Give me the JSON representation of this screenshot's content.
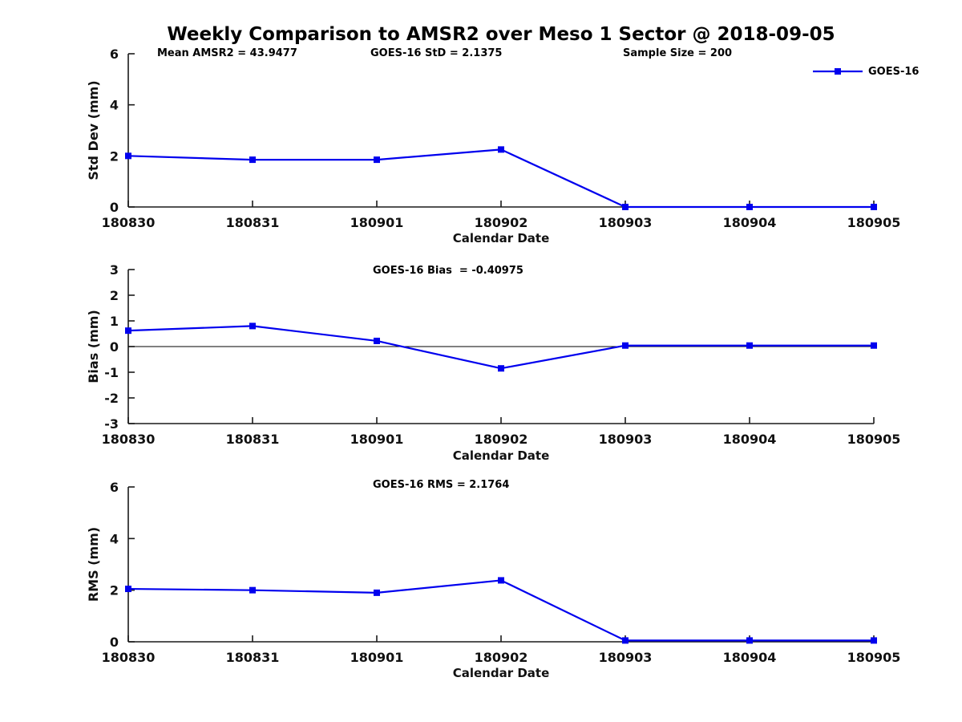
{
  "figure": {
    "title": "Weekly Comparison to AMSR2 over Meso 1 Sector @ 2018-09-05",
    "annotations": {
      "mean_amsr2": "Mean AMSR2 = 43.9477",
      "goes16_std": "GOES-16 StD = 2.1375",
      "sample_size": "Sample Size = 200",
      "goes16_bias": "GOES-16 Bias  = -0.40975",
      "goes16_rms": "GOES-16 RMS = 2.1764"
    },
    "legend": {
      "label": "GOES-16",
      "line_color": "#0000EE",
      "marker": "square"
    },
    "colors": {
      "series_blue": "#0000EE",
      "axis_black": "#1a1a1a",
      "text_black": "#111111"
    }
  },
  "chart_data": [
    {
      "type": "line",
      "title": "Std Dev subplot",
      "categories": [
        "180830",
        "180831",
        "180901",
        "180902",
        "180903",
        "180904",
        "180905"
      ],
      "series": [
        {
          "name": "GOES-16",
          "color": "#0000EE",
          "values": [
            2.0,
            1.85,
            1.85,
            2.25,
            0.0,
            0.0,
            0.0
          ]
        }
      ],
      "xlabel": "Calendar Date",
      "ylabel": "Std Dev (mm)",
      "ylim": [
        0,
        6
      ],
      "yticks": [
        0,
        2,
        4,
        6
      ],
      "zero_line": false,
      "grid": false,
      "legend_position": "top-right"
    },
    {
      "type": "line",
      "title": "Bias subplot",
      "categories": [
        "180830",
        "180831",
        "180901",
        "180902",
        "180903",
        "180904",
        "180905"
      ],
      "series": [
        {
          "name": "GOES-16",
          "color": "#0000EE",
          "values": [
            0.62,
            0.8,
            0.22,
            -0.85,
            0.04,
            0.04,
            0.04
          ]
        }
      ],
      "xlabel": "Calendar Date",
      "ylabel": "Bias (mm)",
      "ylim": [
        -3,
        3
      ],
      "yticks": [
        -3,
        -2,
        -1,
        0,
        1,
        2,
        3
      ],
      "zero_line": true,
      "grid": false,
      "legend_position": "none"
    },
    {
      "type": "line",
      "title": "RMS subplot",
      "categories": [
        "180830",
        "180831",
        "180901",
        "180902",
        "180903",
        "180904",
        "180905"
      ],
      "series": [
        {
          "name": "GOES-16",
          "color": "#0000EE",
          "values": [
            2.05,
            2.0,
            1.9,
            2.38,
            0.05,
            0.05,
            0.05
          ]
        }
      ],
      "xlabel": "Calendar Date",
      "ylabel": "RMS (mm)",
      "ylim": [
        0,
        6
      ],
      "yticks": [
        0,
        2,
        4,
        6
      ],
      "zero_line": false,
      "grid": false,
      "legend_position": "none"
    }
  ]
}
